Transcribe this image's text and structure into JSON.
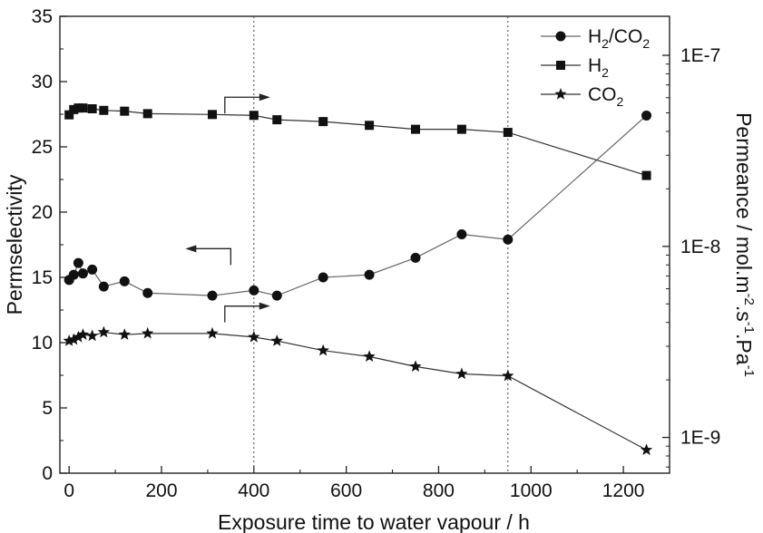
{
  "chart_data": {
    "type": "line",
    "x": [
      0,
      10,
      20,
      30,
      50,
      75,
      120,
      170,
      310,
      400,
      450,
      550,
      650,
      750,
      850,
      950,
      1250
    ],
    "xlabel": "Exposure time to water vapour / h",
    "xlim": [
      -20,
      1300
    ],
    "xticks": [
      0,
      200,
      400,
      600,
      800,
      1000,
      1200
    ],
    "ylabel_left": "Permselectivity",
    "ylim_left": [
      0,
      35
    ],
    "yticks_left": [
      0,
      5,
      10,
      15,
      20,
      25,
      30,
      35
    ],
    "ylabel_right": {
      "base": "Permeance / mol.m",
      "sup1": "-2",
      "mid": ".s",
      "sup2": "-1",
      "mid2": ".Pa",
      "sup3": "-1"
    },
    "ylim_right": [
      6.5e-10,
      1.6e-07
    ],
    "yscale_right": "log",
    "yticks_right": [
      {
        "value": 1e-09,
        "label": "1E-9"
      },
      {
        "value": 1e-08,
        "label": "1E-8"
      },
      {
        "value": 1e-07,
        "label": "1E-7"
      }
    ],
    "vlines": [
      400,
      950
    ],
    "series": [
      {
        "name": "H2/CO2",
        "legend_parts": {
          "a": "H",
          "sub_a": "2",
          "b": "/CO",
          "sub_b": "2"
        },
        "axis": "left",
        "marker": "circle",
        "y": [
          14.8,
          15.2,
          16.1,
          15.3,
          15.6,
          14.3,
          14.7,
          13.8,
          13.6,
          14.0,
          13.6,
          15.0,
          15.2,
          16.5,
          18.3,
          17.9,
          27.4
        ]
      },
      {
        "name": "H2",
        "legend_parts": {
          "a": "H",
          "sub_a": "2"
        },
        "axis": "right",
        "marker": "square",
        "y": [
          4.88e-08,
          5.2e-08,
          5.3e-08,
          5.3e-08,
          5.25e-08,
          5.15e-08,
          5.1e-08,
          4.95e-08,
          4.9e-08,
          4.85e-08,
          4.6e-08,
          4.5e-08,
          4.3e-08,
          4.1e-08,
          4.1e-08,
          3.95e-08,
          2.35e-08
        ]
      },
      {
        "name": "CO2",
        "legend_parts": {
          "a": "CO",
          "sub_a": "2"
        },
        "axis": "right",
        "marker": "star",
        "y": [
          3.2e-09,
          3.25e-09,
          3.35e-09,
          3.45e-09,
          3.4e-09,
          3.55e-09,
          3.45e-09,
          3.5e-09,
          3.5e-09,
          3.35e-09,
          3.2e-09,
          2.85e-09,
          2.65e-09,
          2.35e-09,
          2.15e-09,
          2.1e-09,
          8.6e-10
        ]
      }
    ],
    "arrows": [
      {
        "direction": "right",
        "x": 400,
        "y_left": 28.8
      },
      {
        "direction": "left",
        "x": 350,
        "y_left": 17.2
      },
      {
        "direction": "right",
        "x": 400,
        "y_left": 12.8
      }
    ],
    "legend_position": "top-right",
    "grid": false
  }
}
